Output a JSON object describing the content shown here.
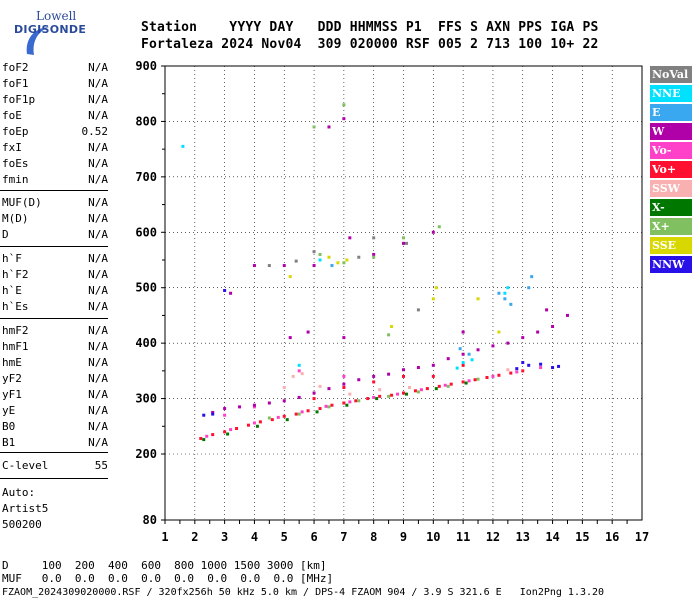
{
  "logo": {
    "top": "Lowell",
    "bottom": "DIGISONDE"
  },
  "header": {
    "line1": "Station    YYYY DAY   DDD HHMMSS P1  FFS S AXN PPS IGA PS",
    "line2": "Fortaleza 2024 Nov04  309 020000 RSF 005 2 713 100 10+ 22"
  },
  "params_group1": [
    {
      "name": "foF2",
      "value": "N/A"
    },
    {
      "name": "foF1",
      "value": "N/A"
    },
    {
      "name": "foF1p",
      "value": "N/A"
    },
    {
      "name": "foE",
      "value": "N/A"
    },
    {
      "name": "foEp",
      "value": "0.52"
    },
    {
      "name": "fxI",
      "value": "N/A"
    },
    {
      "name": "foEs",
      "value": "N/A"
    },
    {
      "name": "fmin",
      "value": "N/A"
    }
  ],
  "params_group2": [
    {
      "name": "MUF(D)",
      "value": "N/A"
    },
    {
      "name": "M(D)",
      "value": "N/A"
    },
    {
      "name": "D",
      "value": "N/A"
    }
  ],
  "params_group3": [
    {
      "name": "h`F",
      "value": "N/A"
    },
    {
      "name": "h`F2",
      "value": "N/A"
    },
    {
      "name": "h`E",
      "value": "N/A"
    },
    {
      "name": "h`Es",
      "value": "N/A"
    }
  ],
  "params_group4": [
    {
      "name": "hmF2",
      "value": "N/A"
    },
    {
      "name": "hmF1",
      "value": "N/A"
    },
    {
      "name": "hmE",
      "value": "N/A"
    },
    {
      "name": "yF2",
      "value": "N/A"
    },
    {
      "name": "yF1",
      "value": "N/A"
    },
    {
      "name": "yE",
      "value": "N/A"
    },
    {
      "name": "B0",
      "value": "N/A"
    },
    {
      "name": "B1",
      "value": "N/A"
    }
  ],
  "params_group5": [
    {
      "name": "C-level",
      "value": "55"
    }
  ],
  "autoscaling": {
    "line1": "Auto:",
    "line2": "Artist5",
    "line3": "500200"
  },
  "legend": [
    {
      "label": "NoVal",
      "color": "#808080"
    },
    {
      "label": "NNE",
      "color": "#00e0ff"
    },
    {
      "label": "E",
      "color": "#3aa8f0"
    },
    {
      "label": "W",
      "color": "#b000a8"
    },
    {
      "label": "Vo-",
      "color": "#ff40c8"
    },
    {
      "label": "Vo+",
      "color": "#ff1030"
    },
    {
      "label": "SSW",
      "color": "#f8b0b0"
    },
    {
      "label": "X-",
      "color": "#007800"
    },
    {
      "label": "X+",
      "color": "#80c060"
    },
    {
      "label": "SSE",
      "color": "#d8d800"
    },
    {
      "label": "NNW",
      "color": "#2810e8"
    }
  ],
  "footer": {
    "d_line": "D     100  200  400  600  800 1000 1500 3000 [km]",
    "muf_line": "MUF   0.0  0.0  0.0  0.0  0.0  0.0  0.0  0.0 [MHz]",
    "file_line": "FZAOM_2024309020000.RSF / 320fx256h 50 kHz 5.0 km / DPS-4 FZAOM 904 / 3.9 S 321.6 E   Ion2Png 1.3.20"
  },
  "chart_data": {
    "type": "scatter",
    "title": "",
    "xlabel": "",
    "ylabel": "",
    "x_ticks": [
      "1",
      "2",
      "3",
      "4",
      "5",
      "6",
      "7",
      "8",
      "9",
      "10",
      "11",
      "12",
      "13",
      "14",
      "15",
      "16",
      "17"
    ],
    "y_ticks": [
      "80",
      "200",
      "300",
      "400",
      "500",
      "600",
      "700",
      "800",
      "900"
    ],
    "xlim": [
      1,
      17
    ],
    "ylim": [
      80,
      900
    ],
    "grid": true,
    "legend_position": "right",
    "series": [
      {
        "name": "Vo+",
        "color": "#ff1030",
        "points": [
          [
            2.2,
            228
          ],
          [
            2.6,
            235
          ],
          [
            3.0,
            240
          ],
          [
            3.4,
            246
          ],
          [
            3.8,
            252
          ],
          [
            4.2,
            258
          ],
          [
            4.6,
            262
          ],
          [
            5.0,
            268
          ],
          [
            5.4,
            272
          ],
          [
            5.8,
            278
          ],
          [
            6.2,
            282
          ],
          [
            6.6,
            288
          ],
          [
            7.0,
            292
          ],
          [
            7.4,
            296
          ],
          [
            7.8,
            300
          ],
          [
            8.2,
            304
          ],
          [
            8.6,
            306
          ],
          [
            9.0,
            310
          ],
          [
            9.4,
            314
          ],
          [
            9.8,
            318
          ],
          [
            10.2,
            322
          ],
          [
            10.6,
            326
          ],
          [
            11.0,
            330
          ],
          [
            11.4,
            334
          ],
          [
            11.8,
            338
          ],
          [
            12.2,
            342
          ],
          [
            12.6,
            346
          ],
          [
            13.0,
            350
          ],
          [
            8.0,
            330
          ],
          [
            9.0,
            340
          ],
          [
            10.0,
            340
          ],
          [
            11.0,
            360
          ],
          [
            7.0,
            320
          ],
          [
            6.0,
            300
          ]
        ]
      },
      {
        "name": "Vo-",
        "color": "#ff40c8",
        "points": [
          [
            2.4,
            232
          ],
          [
            3.2,
            244
          ],
          [
            4.0,
            256
          ],
          [
            4.8,
            266
          ],
          [
            5.6,
            276
          ],
          [
            6.4,
            286
          ],
          [
            7.2,
            294
          ],
          [
            8.0,
            302
          ],
          [
            8.8,
            308
          ],
          [
            9.6,
            316
          ],
          [
            10.4,
            324
          ],
          [
            11.2,
            332
          ],
          [
            12.0,
            340
          ],
          [
            12.8,
            348
          ],
          [
            13.6,
            356
          ],
          [
            5.5,
            350
          ],
          [
            7.0,
            340
          ],
          [
            3.0,
            270
          ],
          [
            4.0,
            285
          ]
        ]
      },
      {
        "name": "W",
        "color": "#b000a8",
        "points": [
          [
            2.6,
            275
          ],
          [
            3.0,
            282
          ],
          [
            3.5,
            285
          ],
          [
            4.0,
            288
          ],
          [
            4.5,
            292
          ],
          [
            5.0,
            296
          ],
          [
            5.5,
            302
          ],
          [
            6.0,
            310
          ],
          [
            6.5,
            318
          ],
          [
            7.0,
            326
          ],
          [
            7.5,
            334
          ],
          [
            8.0,
            340
          ],
          [
            8.5,
            344
          ],
          [
            9.0,
            352
          ],
          [
            9.5,
            356
          ],
          [
            10.0,
            360
          ],
          [
            10.5,
            372
          ],
          [
            11.0,
            380
          ],
          [
            11.5,
            388
          ],
          [
            12.0,
            395
          ],
          [
            12.5,
            400
          ],
          [
            13.0,
            410
          ],
          [
            13.5,
            420
          ],
          [
            14.0,
            430
          ],
          [
            14.5,
            450
          ],
          [
            7.0,
            410
          ],
          [
            5.8,
            420
          ],
          [
            5.2,
            410
          ],
          [
            4.0,
            540
          ],
          [
            3.2,
            490
          ],
          [
            6.0,
            540
          ],
          [
            5.0,
            540
          ],
          [
            7.0,
            805
          ],
          [
            6.5,
            790
          ],
          [
            7.2,
            590
          ],
          [
            8.0,
            560
          ],
          [
            9.0,
            580
          ],
          [
            10.0,
            600
          ],
          [
            11.0,
            420
          ],
          [
            13.8,
            460
          ]
        ]
      },
      {
        "name": "NNE",
        "color": "#00e0ff",
        "points": [
          [
            11.0,
            365
          ],
          [
            11.3,
            370
          ],
          [
            10.8,
            355
          ],
          [
            12.4,
            490
          ],
          [
            12.5,
            500
          ],
          [
            1.6,
            755
          ],
          [
            6.2,
            550
          ],
          [
            5.5,
            360
          ]
        ]
      },
      {
        "name": "E",
        "color": "#3aa8f0",
        "points": [
          [
            12.2,
            490
          ],
          [
            12.4,
            480
          ],
          [
            12.6,
            470
          ],
          [
            13.2,
            500
          ],
          [
            13.3,
            520
          ],
          [
            11.2,
            380
          ],
          [
            10.9,
            390
          ],
          [
            6.6,
            540
          ]
        ]
      },
      {
        "name": "X-",
        "color": "#007800",
        "points": [
          [
            2.3,
            226
          ],
          [
            3.1,
            236
          ],
          [
            4.1,
            250
          ],
          [
            5.1,
            262
          ],
          [
            6.1,
            276
          ],
          [
            7.1,
            288
          ],
          [
            8.1,
            300
          ],
          [
            9.1,
            308
          ],
          [
            10.1,
            318
          ],
          [
            11.1,
            328
          ]
        ]
      },
      {
        "name": "X+",
        "color": "#80c060",
        "points": [
          [
            4.5,
            265
          ],
          [
            5.5,
            272
          ],
          [
            6.5,
            285
          ],
          [
            7.5,
            296
          ],
          [
            8.5,
            304
          ],
          [
            9.5,
            312
          ],
          [
            10.5,
            322
          ],
          [
            11.5,
            335
          ],
          [
            6.2,
            560
          ],
          [
            7.0,
            545
          ],
          [
            8.0,
            555
          ],
          [
            9.0,
            590
          ],
          [
            10.2,
            610
          ],
          [
            7.0,
            830
          ],
          [
            6.0,
            790
          ],
          [
            8.5,
            415
          ]
        ]
      },
      {
        "name": "SSE",
        "color": "#d8d800",
        "points": [
          [
            6.8,
            545
          ],
          [
            7.1,
            550
          ],
          [
            6.5,
            555
          ],
          [
            10.0,
            480
          ],
          [
            10.1,
            500
          ],
          [
            11.5,
            480
          ],
          [
            12.2,
            420
          ],
          [
            8.6,
            430
          ],
          [
            5.2,
            520
          ]
        ]
      },
      {
        "name": "SSW",
        "color": "#f8b0b0",
        "points": [
          [
            5.3,
            340
          ],
          [
            5.6,
            345
          ],
          [
            5.0,
            320
          ],
          [
            6.2,
            322
          ],
          [
            7.2,
            308
          ],
          [
            8.2,
            316
          ],
          [
            9.2,
            320
          ],
          [
            12.5,
            352
          ]
        ]
      },
      {
        "name": "NNW",
        "color": "#2810e8",
        "points": [
          [
            2.3,
            270
          ],
          [
            2.6,
            272
          ],
          [
            13.2,
            360
          ],
          [
            13.6,
            362
          ],
          [
            14.0,
            356
          ],
          [
            14.2,
            358
          ],
          [
            12.8,
            354
          ],
          [
            13.0,
            365
          ],
          [
            3.0,
            495
          ]
        ]
      },
      {
        "name": "NoVal",
        "color": "#808080",
        "points": [
          [
            4.5,
            540
          ],
          [
            5.4,
            548
          ],
          [
            6.0,
            565
          ],
          [
            7.5,
            555
          ],
          [
            8.0,
            590
          ],
          [
            9.1,
            580
          ],
          [
            9.5,
            460
          ]
        ]
      }
    ]
  }
}
